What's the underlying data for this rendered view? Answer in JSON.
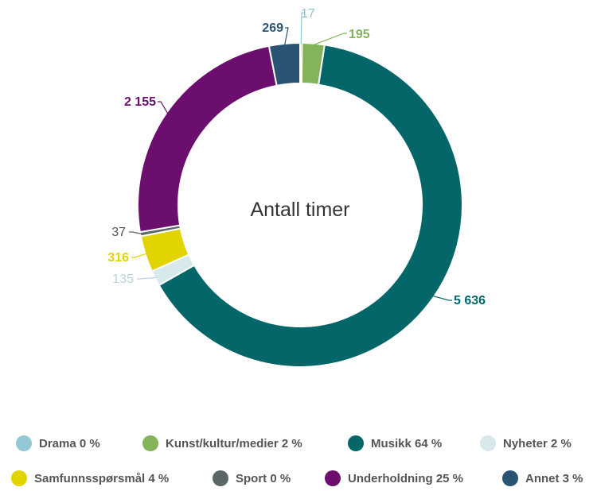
{
  "chart_data": {
    "type": "pie",
    "title": "Antall timer",
    "series": [
      {
        "name": "Drama",
        "legend_label": "Drama 0 %",
        "value": 17,
        "value_label": "17",
        "color": "#93c7d3"
      },
      {
        "name": "Kunst/kultur/medier",
        "legend_label": "Kunst/kultur/medier 2 %",
        "value": 195,
        "value_label": "195",
        "color": "#84b35b"
      },
      {
        "name": "Musikk",
        "legend_label": "Musikk 64 %",
        "value": 5636,
        "value_label": "5 636",
        "color": "#05666a"
      },
      {
        "name": "Nyheter",
        "legend_label": "Nyheter 2 %",
        "value": 135,
        "value_label": "135",
        "color": "#d8e9ec"
      },
      {
        "name": "Samfunnsspørsmål",
        "legend_label": "Samfunnsspørsmål 4 %",
        "value": 316,
        "value_label": "316",
        "color": "#e2d400"
      },
      {
        "name": "Sport",
        "legend_label": "Sport 0 %",
        "value": 37,
        "value_label": "37",
        "color": "#5b6767"
      },
      {
        "name": "Underholdning",
        "legend_label": "Underholdning 25 %",
        "value": 2155,
        "value_label": "2 155",
        "color": "#6c0e6e"
      },
      {
        "name": "Annet",
        "legend_label": "Annet 3 %",
        "value": 269,
        "value_label": "269",
        "color": "#2a5474"
      }
    ],
    "legend_placement": "bottom"
  }
}
